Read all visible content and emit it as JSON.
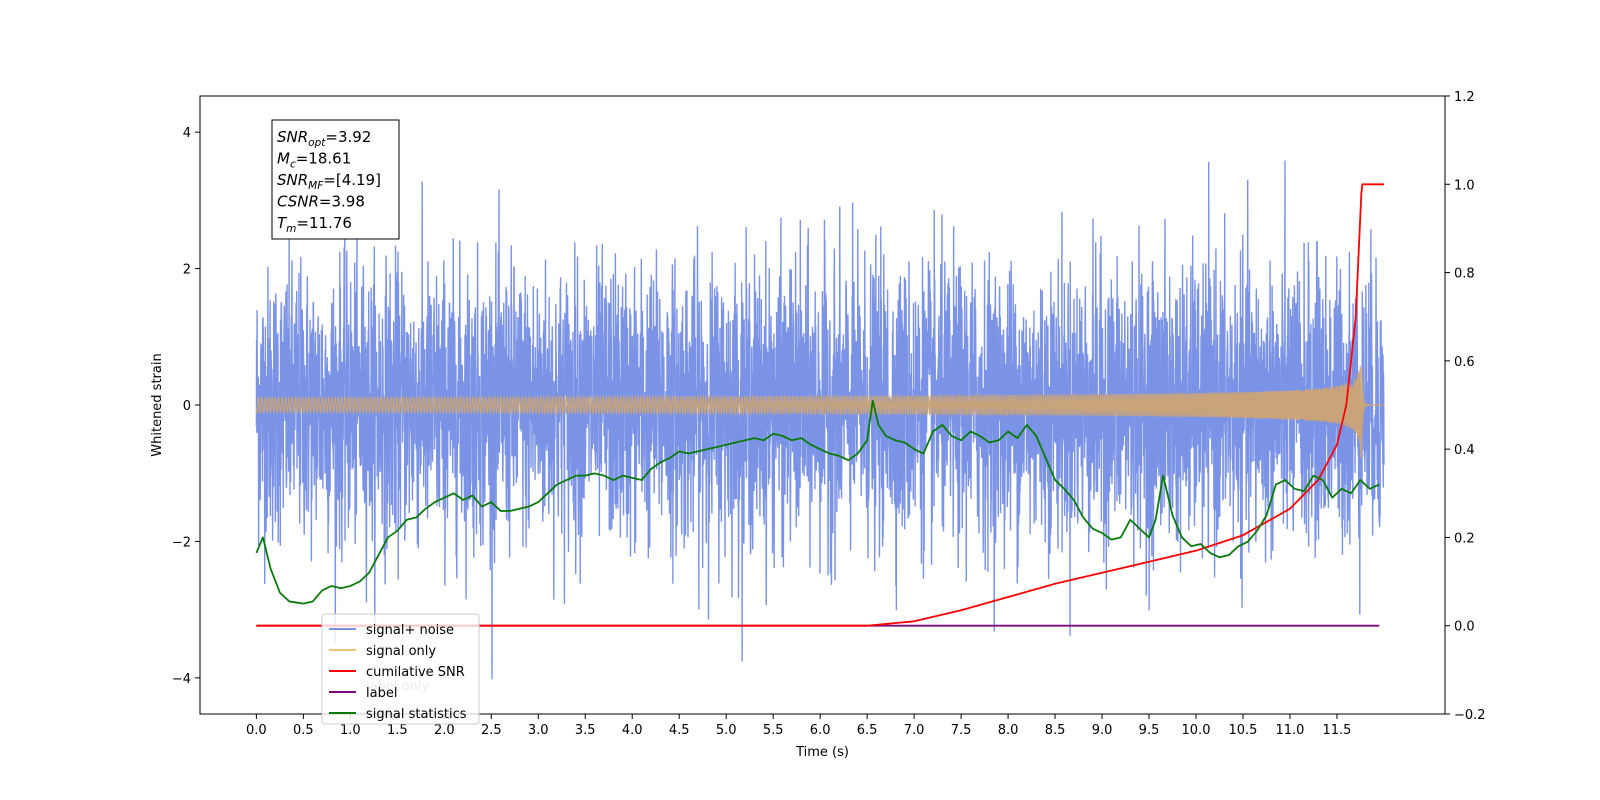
{
  "chart_data": {
    "type": "line",
    "xlabel": "Time (s)",
    "ylabel": "Whitened strain",
    "xlim": [
      -0.6,
      12.65
    ],
    "ylim": [
      -4.53,
      4.53
    ],
    "y2lim": [
      -0.2,
      1.2
    ],
    "x_ticks": [
      "0.0",
      "0.5",
      "1.0",
      "1.5",
      "2.0",
      "2.5",
      "3.0",
      "3.5",
      "4.0",
      "4.5",
      "5.0",
      "5.5",
      "6.0",
      "6.5",
      "7.0",
      "7.5",
      "8.0",
      "8.5",
      "9.0",
      "9.5",
      "10.0",
      "10.5",
      "11.0",
      "11.5"
    ],
    "y_ticks": [
      "4",
      "2",
      "0",
      "−2",
      "−4"
    ],
    "y2_ticks": [
      "1.2",
      "1.0",
      "0.8",
      "0.6",
      "0.4",
      "0.2",
      "0.0",
      "−0.2"
    ],
    "stats_box": [
      {
        "sym": "SNR",
        "sub": "opt",
        "rest": "=3.92"
      },
      {
        "sym": "M",
        "sub": "c",
        "rest": "=18.61"
      },
      {
        "sym": "SNR",
        "sub": "MF",
        "rest": "=[4.19]"
      },
      {
        "sym": "CSNR",
        "sub": "",
        "rest": "=3.98"
      },
      {
        "sym": "T",
        "sub": "m",
        "rest": "=11.76"
      }
    ],
    "legend": {
      "placement": "lower-left",
      "entries": [
        {
          "label": "signal+ noise",
          "color": "#7b93e6"
        },
        {
          "label": "signal only",
          "color": "#f5c27a"
        },
        {
          "label": "cumilative SNR",
          "color": "#ff0000"
        },
        {
          "label": "label",
          "color": "#7a0a7a"
        },
        {
          "label": "signal statistics",
          "color": "#0a7a0a"
        }
      ],
      "hidden_text": "label only"
    },
    "series": [
      {
        "name": "signal+ noise",
        "axis": "left",
        "color": "#7b93e6",
        "x_range": [
          0.0,
          12.0
        ],
        "amplitude_sd": 1.0,
        "max": 4.13,
        "min": -4.1
      },
      {
        "name": "signal only",
        "axis": "left",
        "color": "#c9a47a",
        "x_range": [
          0.0,
          12.0
        ],
        "merger_time": 11.76,
        "peak_amplitude": 0.85
      },
      {
        "name": "cumilative SNR",
        "axis": "right",
        "color": "#ff0000",
        "x": [
          0.0,
          6.5,
          7.0,
          7.5,
          8.0,
          8.5,
          9.0,
          9.5,
          10.0,
          10.5,
          11.0,
          11.3,
          11.5,
          11.6,
          11.7,
          11.76,
          11.77,
          12.0
        ],
        "y": [
          0.0,
          0.0,
          0.01,
          0.035,
          0.065,
          0.095,
          0.12,
          0.145,
          0.17,
          0.205,
          0.265,
          0.33,
          0.41,
          0.5,
          0.7,
          0.98,
          1.0,
          1.0
        ]
      },
      {
        "name": "label",
        "axis": "right",
        "color": "#7a0a7a",
        "x": [
          0.0,
          11.95
        ],
        "y": [
          0.0,
          0.0
        ]
      },
      {
        "name": "signal statistics",
        "axis": "right",
        "color": "#0a7a0a",
        "x": [
          0.0,
          0.07,
          0.15,
          0.25,
          0.35,
          0.5,
          0.6,
          0.7,
          0.8,
          0.9,
          1.0,
          1.1,
          1.2,
          1.3,
          1.4,
          1.5,
          1.6,
          1.7,
          1.8,
          1.9,
          2.0,
          2.1,
          2.2,
          2.3,
          2.4,
          2.5,
          2.6,
          2.7,
          2.8,
          2.9,
          3.0,
          3.1,
          3.2,
          3.3,
          3.4,
          3.5,
          3.6,
          3.7,
          3.8,
          3.9,
          4.0,
          4.1,
          4.2,
          4.3,
          4.4,
          4.5,
          4.6,
          4.7,
          4.8,
          4.9,
          5.0,
          5.1,
          5.2,
          5.3,
          5.4,
          5.5,
          5.6,
          5.7,
          5.8,
          5.9,
          6.0,
          6.1,
          6.2,
          6.3,
          6.4,
          6.5,
          6.56,
          6.62,
          6.7,
          6.8,
          6.9,
          7.0,
          7.1,
          7.2,
          7.3,
          7.4,
          7.5,
          7.6,
          7.7,
          7.8,
          7.9,
          8.0,
          8.1,
          8.2,
          8.3,
          8.4,
          8.5,
          8.6,
          8.7,
          8.8,
          8.9,
          9.0,
          9.1,
          9.2,
          9.3,
          9.4,
          9.5,
          9.57,
          9.65,
          9.75,
          9.85,
          9.95,
          10.05,
          10.15,
          10.25,
          10.35,
          10.45,
          10.55,
          10.65,
          10.75,
          10.85,
          10.95,
          11.05,
          11.15,
          11.25,
          11.35,
          11.45,
          11.55,
          11.65,
          11.75,
          11.85,
          11.95
        ],
        "y": [
          0.165,
          0.2,
          0.13,
          0.075,
          0.055,
          0.05,
          0.055,
          0.08,
          0.09,
          0.085,
          0.09,
          0.1,
          0.12,
          0.16,
          0.2,
          0.215,
          0.24,
          0.245,
          0.265,
          0.28,
          0.29,
          0.3,
          0.285,
          0.295,
          0.27,
          0.28,
          0.26,
          0.26,
          0.265,
          0.27,
          0.28,
          0.3,
          0.32,
          0.33,
          0.34,
          0.34,
          0.345,
          0.34,
          0.33,
          0.34,
          0.335,
          0.33,
          0.355,
          0.37,
          0.38,
          0.395,
          0.39,
          0.395,
          0.4,
          0.405,
          0.41,
          0.415,
          0.42,
          0.425,
          0.42,
          0.435,
          0.43,
          0.42,
          0.425,
          0.41,
          0.4,
          0.39,
          0.385,
          0.375,
          0.39,
          0.42,
          0.51,
          0.455,
          0.43,
          0.42,
          0.415,
          0.4,
          0.39,
          0.44,
          0.455,
          0.43,
          0.42,
          0.44,
          0.43,
          0.415,
          0.42,
          0.44,
          0.425,
          0.455,
          0.43,
          0.38,
          0.33,
          0.31,
          0.285,
          0.245,
          0.22,
          0.21,
          0.195,
          0.2,
          0.24,
          0.22,
          0.2,
          0.24,
          0.34,
          0.25,
          0.2,
          0.18,
          0.185,
          0.165,
          0.155,
          0.16,
          0.18,
          0.19,
          0.215,
          0.25,
          0.32,
          0.33,
          0.31,
          0.305,
          0.34,
          0.33,
          0.29,
          0.31,
          0.3,
          0.33,
          0.31,
          0.32
        ]
      }
    ]
  }
}
